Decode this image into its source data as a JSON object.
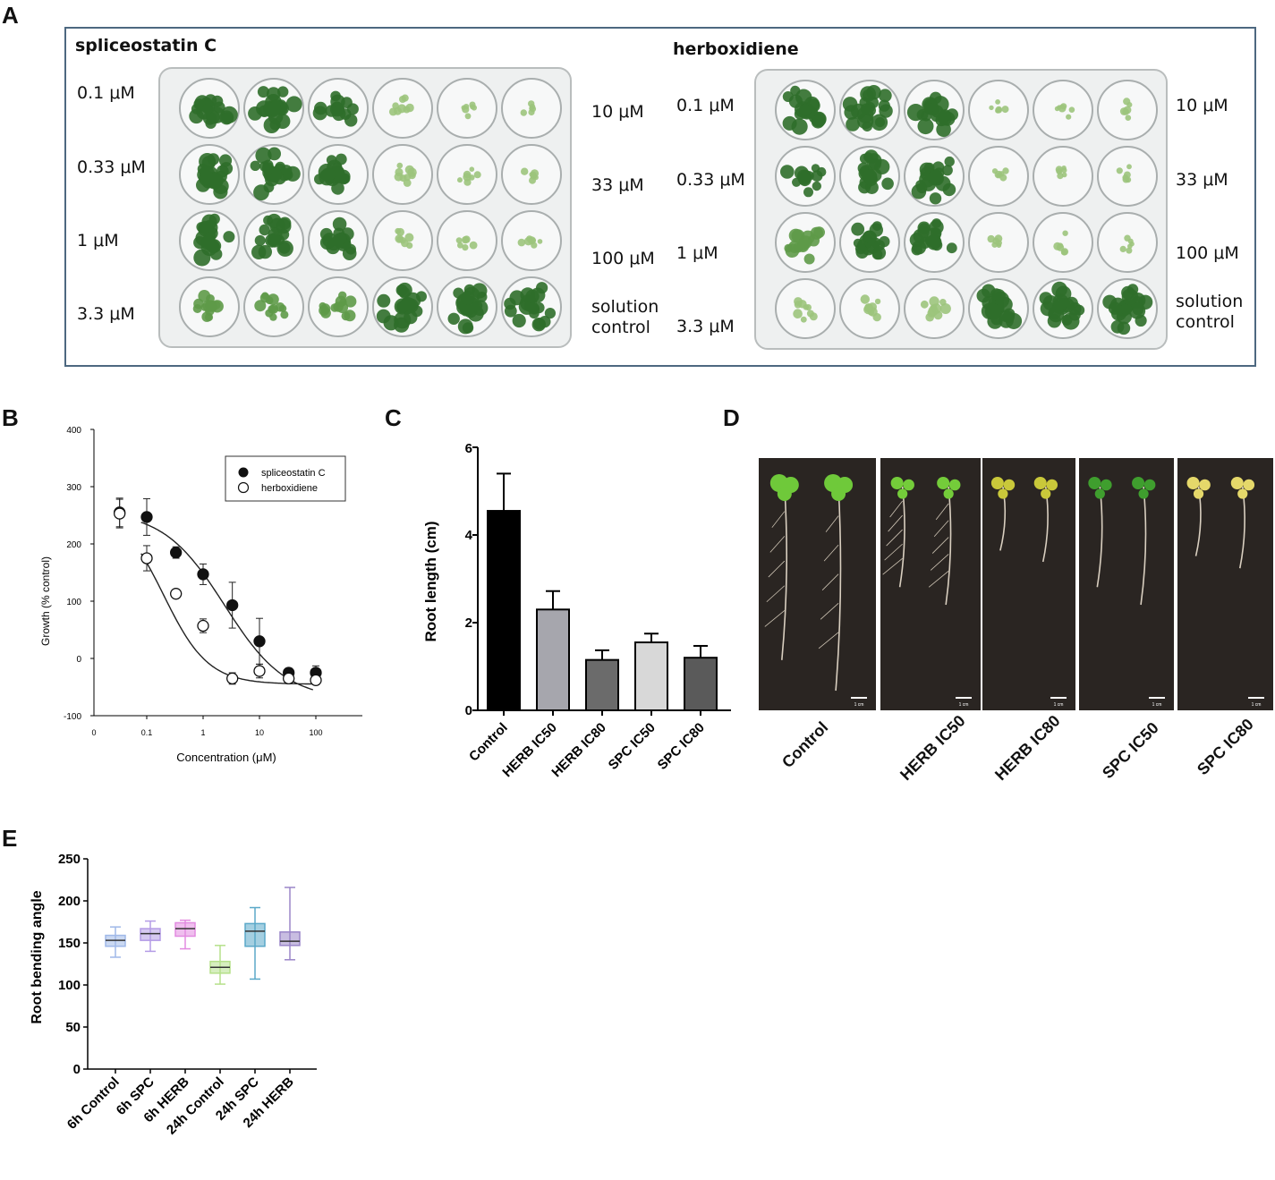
{
  "panel_labels": {
    "a": "A",
    "b": "B",
    "c": "C",
    "d": "D",
    "e": "E"
  },
  "panelA": {
    "left": {
      "title": "spliceostatin C",
      "row_labels_left": [
        "0.1  μM",
        "0.33 μM",
        "1 μM",
        "3.3 μM"
      ],
      "row_labels_right": [
        "10 μM",
        "33 μM",
        "100 μM",
        "solution control"
      ],
      "growth": [
        [
          1.0,
          1.0,
          0.8,
          0.25,
          0.2,
          0.15
        ],
        [
          1.0,
          1.0,
          1.0,
          0.3,
          0.2,
          0.2
        ],
        [
          1.0,
          0.95,
          0.9,
          0.25,
          0.15,
          0.2
        ],
        [
          0.6,
          0.5,
          0.55,
          1.0,
          1.0,
          1.0
        ]
      ]
    },
    "right": {
      "title": "herboxidiene",
      "row_labels_left": [
        "0.1  μM",
        "0.33 μM",
        "1 μM",
        "3.3 μM"
      ],
      "row_labels_right": [
        "10 μM",
        "33 μM",
        "100 μM",
        "solution control"
      ],
      "growth": [
        [
          1.0,
          1.0,
          1.0,
          0.15,
          0.15,
          0.15
        ],
        [
          0.75,
          0.85,
          1.0,
          0.15,
          0.1,
          0.15
        ],
        [
          0.7,
          0.8,
          0.85,
          0.15,
          0.15,
          0.15
        ],
        [
          0.3,
          0.3,
          0.4,
          1.0,
          1.0,
          1.0
        ]
      ]
    },
    "colors": {
      "leaf_dark": "#2f6e2a",
      "leaf_light": "#9cc47c",
      "frame": "#4d6880"
    }
  },
  "chart_data": [
    {
      "id": "B",
      "type": "scatter",
      "xlabel": "Concentration (μM)",
      "ylabel": "Growth (% control)",
      "x_scale": "log",
      "x_ticks": [
        "0",
        "0.1",
        "1",
        "10",
        "100"
      ],
      "y_ticks": [
        "-100",
        "0",
        "100",
        "200",
        "300",
        "400"
      ],
      "ylim": [
        -100,
        400
      ],
      "legend_position": "top-right",
      "series": [
        {
          "name": "spliceostatin C",
          "marker": "filled-circle",
          "x": [
            0.033,
            0.1,
            0.33,
            1,
            3.3,
            10,
            33,
            100
          ],
          "y": [
            255,
            247,
            185,
            147,
            93,
            30,
            -25,
            -25
          ],
          "err": [
            25,
            32,
            10,
            18,
            40,
            40,
            8,
            12
          ],
          "fit": {
            "top": 258,
            "bottom": -72,
            "ic50": 2.4,
            "hill": 0.8
          }
        },
        {
          "name": "herboxidiene",
          "marker": "open-circle",
          "x": [
            0.033,
            0.1,
            0.33,
            1,
            3.3,
            10,
            33,
            100
          ],
          "y": [
            253,
            175,
            113,
            57,
            -35,
            -22,
            -35,
            -38
          ],
          "err": [
            25,
            22,
            5,
            12,
            10,
            12,
            8,
            8
          ],
          "fit": {
            "top": 266,
            "bottom": -45,
            "ic50": 0.2,
            "hill": 1.1
          }
        }
      ]
    },
    {
      "id": "C",
      "type": "bar",
      "categories": [
        "Control",
        "HERB IC50",
        "HERB IC80",
        "SPC IC50",
        "SPC IC80"
      ],
      "values": [
        4.55,
        2.3,
        1.15,
        1.55,
        1.2
      ],
      "errors": [
        0.85,
        0.42,
        0.22,
        0.2,
        0.27
      ],
      "colors": [
        "#000000",
        "#a6a6ad",
        "#6b6b6b",
        "#d8d8d8",
        "#5a5a5a"
      ],
      "ylabel": "Root length (cm)",
      "y_ticks": [
        "0",
        "2",
        "4",
        "6"
      ],
      "ylim": [
        0,
        6
      ]
    },
    {
      "id": "E",
      "type": "box",
      "categories": [
        "6h Control",
        "6h SPC",
        "6h HERB",
        "24h Control",
        "24h SPC",
        "24h HERB"
      ],
      "boxes": [
        {
          "min": 133,
          "q1": 146,
          "median": 153,
          "q3": 159,
          "max": 169
        },
        {
          "min": 140,
          "q1": 153,
          "median": 161,
          "q3": 167,
          "max": 176
        },
        {
          "min": 143,
          "q1": 158,
          "median": 167,
          "q3": 174,
          "max": 177
        },
        {
          "min": 101,
          "q1": 114,
          "median": 121,
          "q3": 128,
          "max": 147
        },
        {
          "min": 107,
          "q1": 146,
          "median": 164,
          "q3": 173,
          "max": 192
        },
        {
          "min": 130,
          "q1": 147,
          "median": 152,
          "q3": 163,
          "max": 216
        }
      ],
      "colors": [
        "#9fb8e8",
        "#b49ce6",
        "#e28be0",
        "#b5e08a",
        "#5aa8c8",
        "#9a86c8"
      ],
      "ylabel": "Root bending angle",
      "y_ticks": [
        "0",
        "50",
        "100",
        "150",
        "200",
        "250"
      ],
      "ylim": [
        0,
        250
      ]
    }
  ],
  "panelD": {
    "labels": [
      "Control",
      "HERB IC50",
      "HERB IC80",
      "SPC IC50",
      "SPC IC80"
    ],
    "leaf_colors": [
      "#6fc93a",
      "#74cc3a",
      "#c9c83a",
      "#3f9e2e",
      "#e5d86a"
    ],
    "scale_text": "1 cm"
  }
}
